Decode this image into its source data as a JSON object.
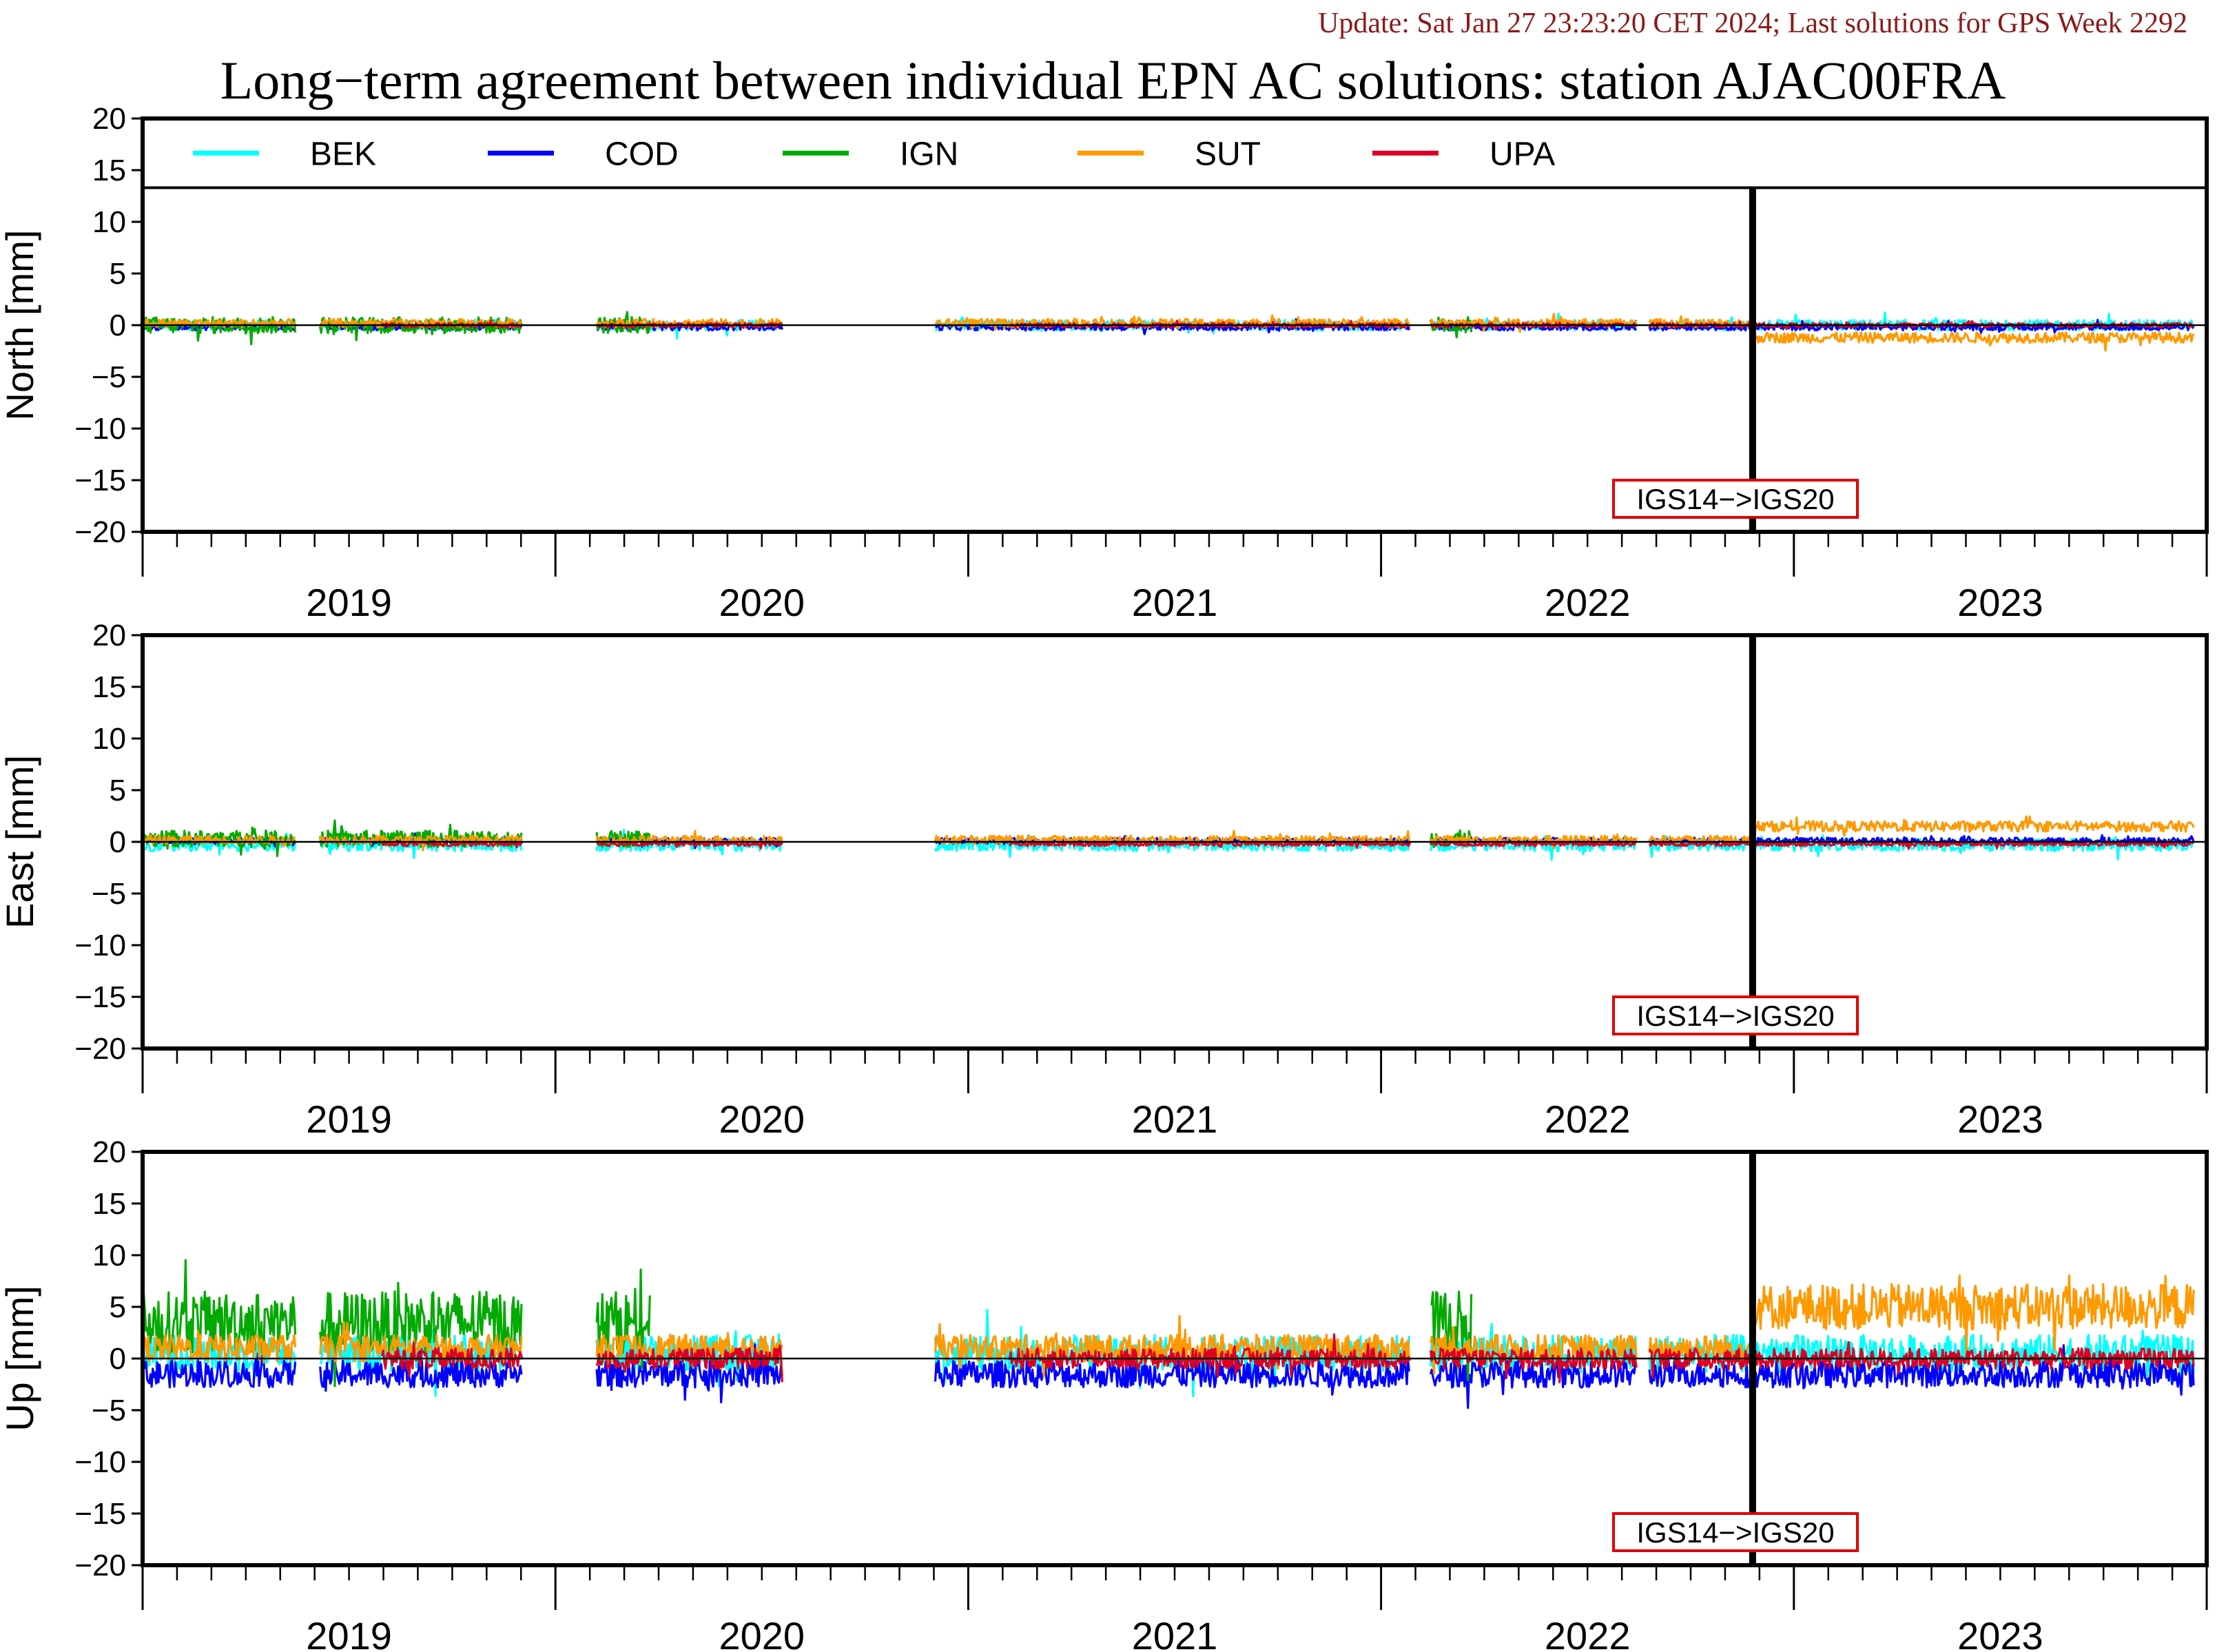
{
  "update_text": "Update: Sat Jan 27 23:23:20 CET 2024; Last solutions for GPS Week 2292",
  "title": "Long−term agreement between individual EPN AC solutions: station AJAC00FRA",
  "colors": {
    "BEK": "#00ffff",
    "COD": "#0000ff",
    "IGN": "#00aa00",
    "SUT": "#ff9900",
    "UPA": "#dd0022",
    "frame_change": "#e00000",
    "update": "#8b1a1a"
  },
  "chart_data": [
    {
      "type": "line",
      "ylabel": "North [mm]",
      "ylim": [
        -20,
        20
      ],
      "yticks": [
        20,
        15,
        10,
        5,
        0,
        -5,
        -10,
        -15,
        -20
      ],
      "xlim": [
        2018.5,
        2023.5
      ],
      "xtick_labels": [
        "2019",
        "2020",
        "2021",
        "2022",
        "2023"
      ],
      "frame_change": {
        "x": 2022.4,
        "label": "IGS14−>IGS20"
      },
      "series": [
        {
          "name": "BEK",
          "level": 0.0,
          "noise": 0.5,
          "segments": [
            [
              2018.5,
              2018.87
            ],
            [
              2018.93,
              2019.42
            ],
            [
              2019.6,
              2020.05
            ],
            [
              2020.42,
              2021.57
            ],
            [
              2021.62,
              2022.12
            ],
            [
              2022.15,
              2022.4
            ],
            [
              2022.4,
              2023.47
            ]
          ]
        },
        {
          "name": "COD",
          "level": -0.2,
          "noise": 0.3,
          "segments": [
            [
              2018.5,
              2018.87
            ],
            [
              2018.93,
              2019.42
            ],
            [
              2019.6,
              2020.05
            ],
            [
              2020.42,
              2021.57
            ],
            [
              2021.62,
              2022.12
            ],
            [
              2022.15,
              2022.4
            ],
            [
              2022.4,
              2023.47
            ]
          ]
        },
        {
          "name": "IGN",
          "level": 0.0,
          "noise": 0.8,
          "segments": [
            [
              2018.5,
              2018.87
            ],
            [
              2018.93,
              2019.42
            ],
            [
              2019.6,
              2019.73
            ],
            [
              2021.62,
              2021.72
            ]
          ]
        },
        {
          "name": "SUT",
          "level": 0.2,
          "noise": 0.4,
          "segments": [
            [
              2018.5,
              2018.87
            ],
            [
              2018.93,
              2019.42
            ],
            [
              2019.6,
              2020.05
            ],
            [
              2020.42,
              2021.57
            ],
            [
              2021.62,
              2022.12
            ],
            [
              2022.15,
              2022.4
            ]
          ]
        },
        {
          "name": "SUT",
          "level": -1.2,
          "noise": 0.5,
          "segments": [
            [
              2022.4,
              2023.47
            ]
          ]
        },
        {
          "name": "UPA",
          "level": 0.0,
          "noise": 0.2,
          "segments": [
            [
              2019.08,
              2019.42
            ],
            [
              2019.6,
              2020.05
            ],
            [
              2020.6,
              2021.57
            ],
            [
              2021.62,
              2022.12
            ],
            [
              2022.15,
              2022.4
            ],
            [
              2022.4,
              2023.47
            ]
          ]
        }
      ]
    },
    {
      "type": "line",
      "ylabel": "East [mm]",
      "ylim": [
        -20,
        20
      ],
      "yticks": [
        20,
        15,
        10,
        5,
        0,
        -5,
        -10,
        -15,
        -20
      ],
      "xlim": [
        2018.5,
        2023.5
      ],
      "xtick_labels": [
        "2019",
        "2020",
        "2021",
        "2022",
        "2023"
      ],
      "frame_change": {
        "x": 2022.4,
        "label": "IGS14−>IGS20"
      },
      "series": [
        {
          "name": "BEK",
          "level": -0.3,
          "noise": 0.6,
          "segments": [
            [
              2018.5,
              2018.87
            ],
            [
              2018.93,
              2019.42
            ],
            [
              2019.6,
              2020.05
            ],
            [
              2020.42,
              2021.57
            ],
            [
              2021.62,
              2022.12
            ],
            [
              2022.15,
              2022.4
            ],
            [
              2022.4,
              2023.47
            ]
          ]
        },
        {
          "name": "COD",
          "level": 0.1,
          "noise": 0.3,
          "segments": [
            [
              2018.5,
              2018.87
            ],
            [
              2018.93,
              2019.42
            ],
            [
              2019.6,
              2020.05
            ],
            [
              2020.42,
              2021.57
            ],
            [
              2021.62,
              2022.12
            ],
            [
              2022.15,
              2022.4
            ],
            [
              2022.4,
              2023.47
            ]
          ]
        },
        {
          "name": "IGN",
          "level": 0.3,
          "noise": 0.8,
          "segments": [
            [
              2018.5,
              2018.87
            ],
            [
              2018.93,
              2019.42
            ],
            [
              2019.6,
              2019.73
            ],
            [
              2021.62,
              2021.72
            ]
          ]
        },
        {
          "name": "SUT",
          "level": 0.2,
          "noise": 0.4,
          "segments": [
            [
              2018.5,
              2018.87
            ],
            [
              2018.93,
              2019.42
            ],
            [
              2019.6,
              2020.05
            ],
            [
              2020.42,
              2021.57
            ],
            [
              2021.62,
              2022.12
            ],
            [
              2022.15,
              2022.4
            ]
          ]
        },
        {
          "name": "SUT",
          "level": 1.5,
          "noise": 0.5,
          "segments": [
            [
              2022.4,
              2023.47
            ]
          ]
        },
        {
          "name": "UPA",
          "level": -0.2,
          "noise": 0.2,
          "segments": [
            [
              2019.08,
              2019.42
            ],
            [
              2019.6,
              2020.05
            ],
            [
              2020.6,
              2021.57
            ],
            [
              2021.62,
              2022.12
            ],
            [
              2022.15,
              2022.4
            ],
            [
              2022.4,
              2023.47
            ]
          ]
        }
      ]
    },
    {
      "type": "line",
      "ylabel": "Up [mm]",
      "ylim": [
        -20,
        20
      ],
      "yticks": [
        20,
        15,
        10,
        5,
        0,
        -5,
        -10,
        -15,
        -20
      ],
      "xlim": [
        2018.5,
        2023.5
      ],
      "xtick_labels": [
        "2019",
        "2020",
        "2021",
        "2022",
        "2023"
      ],
      "frame_change": {
        "x": 2022.4,
        "label": "IGS14−>IGS20"
      },
      "series": [
        {
          "name": "BEK",
          "level": 0.5,
          "noise": 1.8,
          "segments": [
            [
              2018.5,
              2018.87
            ],
            [
              2018.93,
              2019.42
            ],
            [
              2019.6,
              2020.05
            ],
            [
              2020.42,
              2021.57
            ],
            [
              2021.62,
              2022.12
            ],
            [
              2022.15,
              2022.4
            ],
            [
              2022.4,
              2023.47
            ]
          ]
        },
        {
          "name": "COD",
          "level": -1.5,
          "noise": 1.3,
          "segments": [
            [
              2018.5,
              2018.87
            ],
            [
              2018.93,
              2019.42
            ],
            [
              2019.6,
              2020.05
            ],
            [
              2020.42,
              2021.57
            ],
            [
              2021.62,
              2022.12
            ],
            [
              2022.15,
              2022.4
            ],
            [
              2022.4,
              2023.47
            ]
          ]
        },
        {
          "name": "IGN",
          "level": 3.5,
          "noise": 3.0,
          "segments": [
            [
              2018.5,
              2018.87
            ],
            [
              2018.93,
              2019.42
            ],
            [
              2019.6,
              2019.73
            ],
            [
              2021.62,
              2021.72
            ]
          ]
        },
        {
          "name": "SUT",
          "level": 1.0,
          "noise": 1.3,
          "segments": [
            [
              2018.5,
              2018.87
            ],
            [
              2018.93,
              2019.42
            ],
            [
              2019.6,
              2020.05
            ],
            [
              2020.42,
              2021.57
            ],
            [
              2021.62,
              2022.12
            ],
            [
              2022.15,
              2022.4
            ]
          ]
        },
        {
          "name": "SUT",
          "level": 5.0,
          "noise": 2.2,
          "segments": [
            [
              2022.4,
              2023.47
            ]
          ]
        },
        {
          "name": "UPA",
          "level": 0.0,
          "noise": 1.0,
          "segments": [
            [
              2019.08,
              2019.42
            ],
            [
              2019.6,
              2020.05
            ],
            [
              2020.6,
              2021.57
            ],
            [
              2021.62,
              2022.12
            ],
            [
              2022.15,
              2022.4
            ],
            [
              2022.4,
              2023.47
            ]
          ]
        }
      ]
    }
  ],
  "legend": [
    "BEK",
    "COD",
    "IGN",
    "SUT",
    "UPA"
  ]
}
